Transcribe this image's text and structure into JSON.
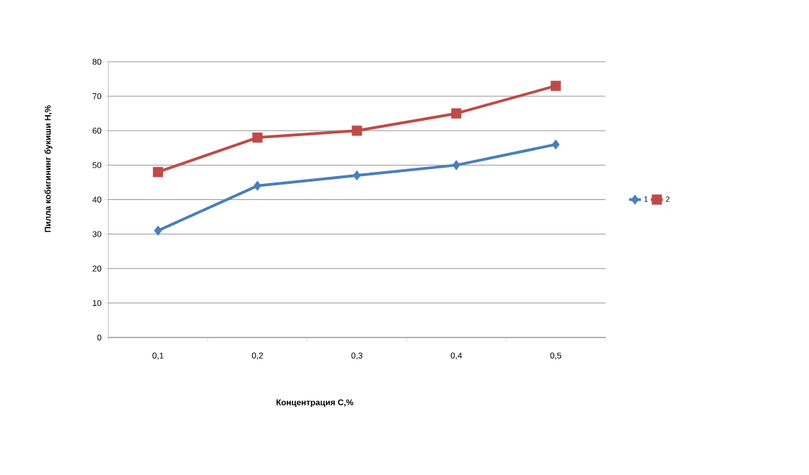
{
  "chart_data": {
    "type": "line",
    "xlabel": "Концентрация  C,%",
    "ylabel": "Пилла кобигининг  букиши  H,%",
    "categories": [
      "0,1",
      "0,2",
      "0,3",
      "0,4",
      "0,5"
    ],
    "series": [
      {
        "name": "1",
        "color": "#4a7ebb",
        "marker": "diamond",
        "values": [
          31,
          44,
          47,
          50,
          56
        ]
      },
      {
        "name": "2",
        "color": "#be4b48",
        "marker": "square",
        "values": [
          48,
          58,
          60,
          65,
          73
        ]
      }
    ],
    "ylim": [
      0,
      80
    ],
    "yticks": [
      0,
      10,
      20,
      30,
      40,
      50,
      60,
      70,
      80
    ],
    "grid": "y",
    "legend": "right",
    "line_style": "solid"
  }
}
